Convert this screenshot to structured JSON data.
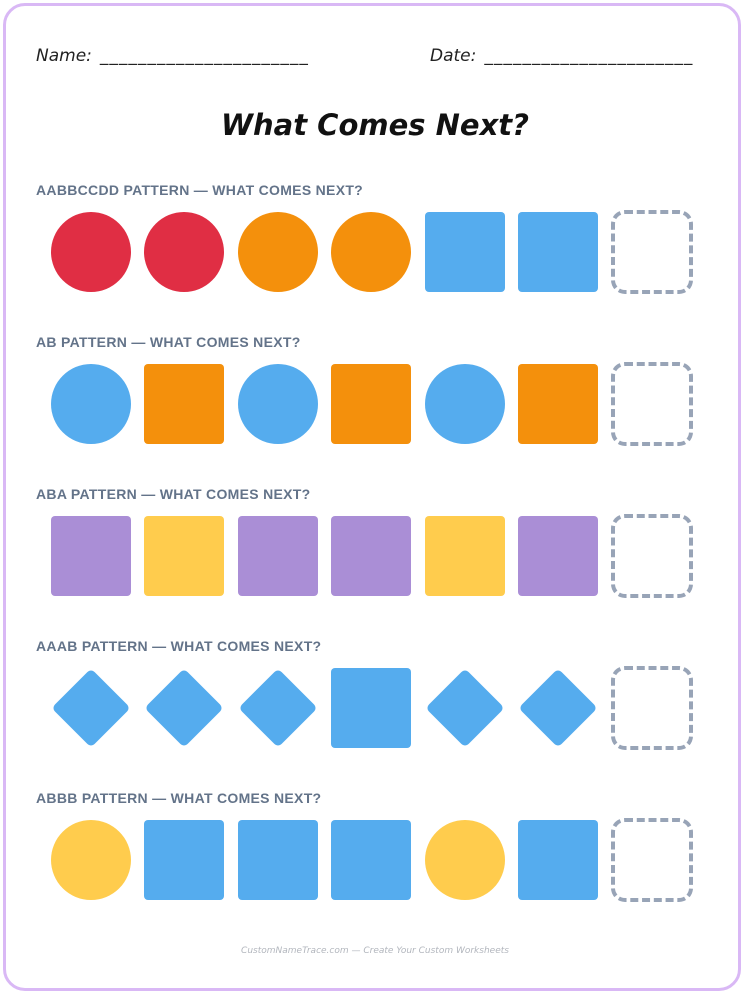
{
  "header": {
    "name_label": "Name:",
    "name_line": "______________________",
    "date_label": "Date:",
    "date_line": "______________________"
  },
  "title": "What Comes Next?",
  "colors": {
    "red": "#e02e44",
    "orange": "#f4900c",
    "blue": "#55acee",
    "purple": "#aa8ed6",
    "yellow": "#ffcc4d",
    "blank_border": "#98a4b7"
  },
  "rows": [
    {
      "label": "AABBCCDD PATTERN — WHAT COMES NEXT?",
      "shapes": [
        {
          "shape": "circle",
          "color": "#e02e44"
        },
        {
          "shape": "circle",
          "color": "#e02e44"
        },
        {
          "shape": "circle",
          "color": "#f4900c"
        },
        {
          "shape": "circle",
          "color": "#f4900c"
        },
        {
          "shape": "square",
          "color": "#55acee"
        },
        {
          "shape": "square",
          "color": "#55acee"
        },
        {
          "shape": "blank",
          "color": ""
        }
      ]
    },
    {
      "label": "AB PATTERN — WHAT COMES NEXT?",
      "shapes": [
        {
          "shape": "circle",
          "color": "#55acee"
        },
        {
          "shape": "square",
          "color": "#f4900c"
        },
        {
          "shape": "circle",
          "color": "#55acee"
        },
        {
          "shape": "square",
          "color": "#f4900c"
        },
        {
          "shape": "circle",
          "color": "#55acee"
        },
        {
          "shape": "square",
          "color": "#f4900c"
        },
        {
          "shape": "blank",
          "color": ""
        }
      ]
    },
    {
      "label": "ABA PATTERN — WHAT COMES NEXT?",
      "shapes": [
        {
          "shape": "square",
          "color": "#aa8ed6"
        },
        {
          "shape": "square",
          "color": "#ffcc4d"
        },
        {
          "shape": "square",
          "color": "#aa8ed6"
        },
        {
          "shape": "square",
          "color": "#aa8ed6"
        },
        {
          "shape": "square",
          "color": "#ffcc4d"
        },
        {
          "shape": "square",
          "color": "#aa8ed6"
        },
        {
          "shape": "blank",
          "color": ""
        }
      ]
    },
    {
      "label": "AAAB PATTERN — WHAT COMES NEXT?",
      "shapes": [
        {
          "shape": "diamond",
          "color": "#55acee"
        },
        {
          "shape": "diamond",
          "color": "#55acee"
        },
        {
          "shape": "diamond",
          "color": "#55acee"
        },
        {
          "shape": "square",
          "color": "#55acee"
        },
        {
          "shape": "diamond",
          "color": "#55acee"
        },
        {
          "shape": "diamond",
          "color": "#55acee"
        },
        {
          "shape": "blank",
          "color": ""
        }
      ]
    },
    {
      "label": "ABBB PATTERN — WHAT COMES NEXT?",
      "shapes": [
        {
          "shape": "circle",
          "color": "#ffcc4d"
        },
        {
          "shape": "square",
          "color": "#55acee"
        },
        {
          "shape": "square",
          "color": "#55acee"
        },
        {
          "shape": "square",
          "color": "#55acee"
        },
        {
          "shape": "circle",
          "color": "#ffcc4d"
        },
        {
          "shape": "square",
          "color": "#55acee"
        },
        {
          "shape": "blank",
          "color": ""
        }
      ]
    }
  ],
  "footer": "CustomNameTrace.com — Create Your Custom Worksheets"
}
